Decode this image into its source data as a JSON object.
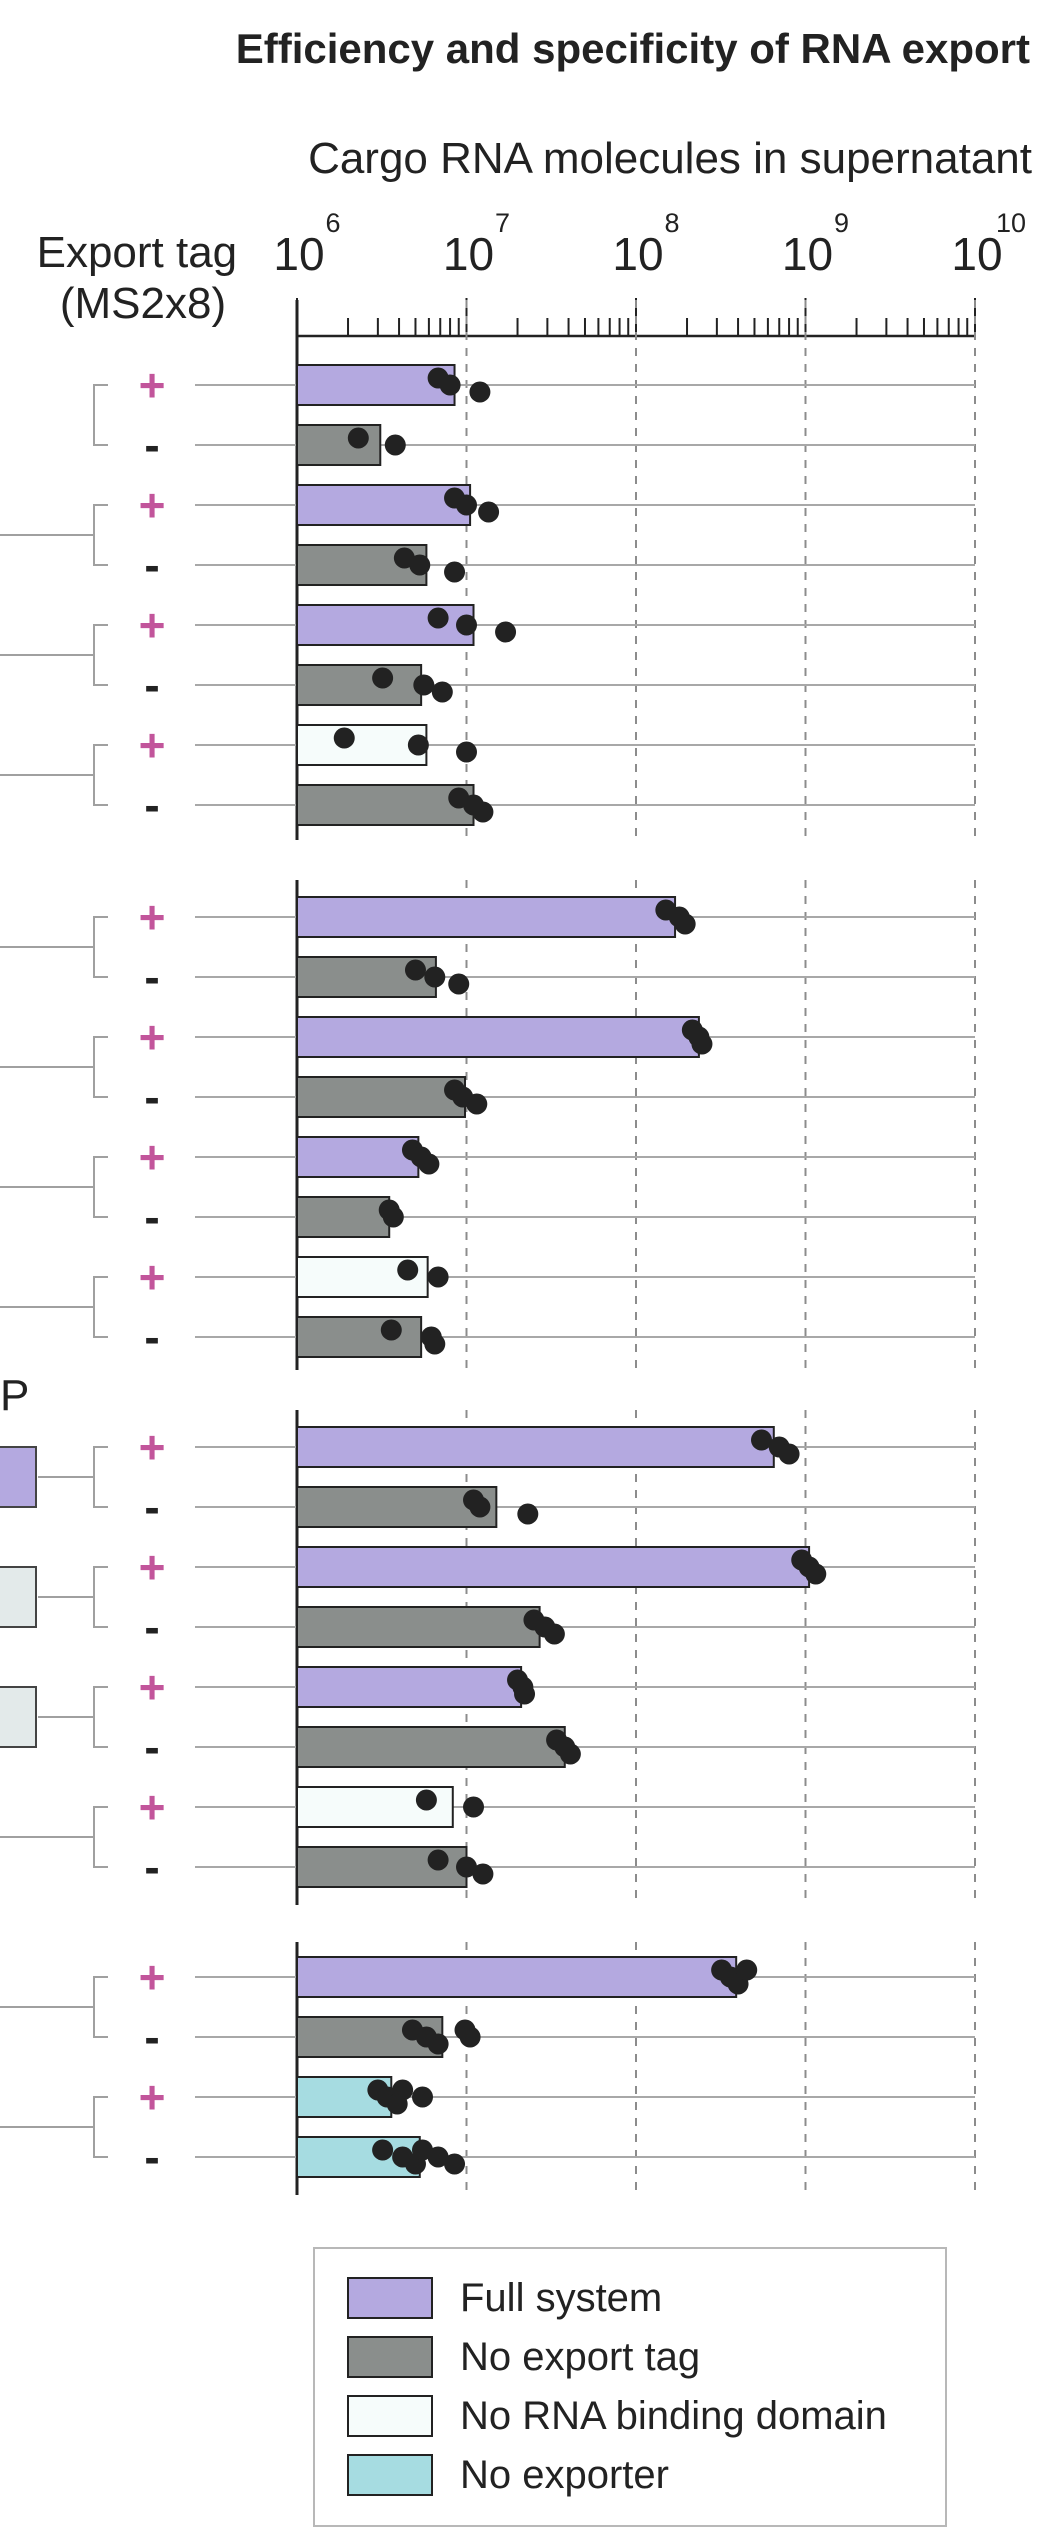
{
  "chart_data": {
    "type": "bar",
    "title": "Efficiency and specificity of RNA export",
    "xlabel": "Cargo RNA molecules in supernatant",
    "ylabel": "Export tag\n(MS2x8)",
    "x_scale": "log",
    "xlim": [
      1000000,
      10000000000
    ],
    "ticks": [
      {
        "base": "10",
        "exp": "6"
      },
      {
        "base": "10",
        "exp": "7"
      },
      {
        "base": "10",
        "exp": "8"
      },
      {
        "base": "10",
        "exp": "9"
      },
      {
        "base": "10",
        "exp": "10"
      }
    ],
    "grid": "dashed vertical lines at decades",
    "legend_position": "bottom",
    "colors": {
      "full": "#b4a9e0",
      "notag": "#8a8e8c",
      "nobind": "#f6fcfb",
      "noexp": "#a6dce1",
      "dot": "#222222"
    },
    "legend": [
      {
        "key": "full",
        "label": "Full system"
      },
      {
        "key": "notag",
        "label": "No export tag"
      },
      {
        "key": "nobind",
        "label": "No RNA binding domain"
      },
      {
        "key": "noexp",
        "label": "No exporter"
      }
    ],
    "panel_fragment_text": "P",
    "panels": [
      {
        "rows": [
          {
            "tag": "+",
            "condition": "full",
            "value": 8500000,
            "points": [
              6800000,
              8000000,
              12000000
            ]
          },
          {
            "tag": "-",
            "condition": "notag",
            "value": 3100000,
            "points": [
              2300000,
              3800000
            ]
          },
          {
            "tag": "+",
            "condition": "full",
            "value": 10500000,
            "points": [
              8500000,
              10000000,
              13500000
            ]
          },
          {
            "tag": "-",
            "condition": "notag",
            "value": 5800000,
            "points": [
              4300000,
              5300000,
              8500000
            ]
          },
          {
            "tag": "+",
            "condition": "full",
            "value": 11000000,
            "points": [
              6800000,
              10000000,
              17000000
            ]
          },
          {
            "tag": "-",
            "condition": "notag",
            "value": 5400000,
            "points": [
              3200000,
              5600000,
              7200000
            ]
          },
          {
            "tag": "+",
            "condition": "nobind",
            "value": 5800000,
            "points": [
              1900000,
              5200000,
              10000000
            ]
          },
          {
            "tag": "-",
            "condition": "notag",
            "value": 11000000,
            "points": [
              9000000,
              11000000,
              12500000
            ]
          }
        ]
      },
      {
        "rows": [
          {
            "tag": "+",
            "condition": "full",
            "value": 170000000,
            "points": [
              150000000,
              180000000,
              195000000
            ]
          },
          {
            "tag": "-",
            "condition": "notag",
            "value": 6600000,
            "points": [
              5000000,
              6500000,
              9000000
            ]
          },
          {
            "tag": "+",
            "condition": "full",
            "value": 235000000,
            "points": [
              215000000,
              235000000,
              245000000
            ]
          },
          {
            "tag": "-",
            "condition": "notag",
            "value": 9800000,
            "points": [
              8500000,
              9500000,
              11500000
            ]
          },
          {
            "tag": "+",
            "condition": "full",
            "value": 5200000,
            "points": [
              4800000,
              5400000,
              6000000
            ]
          },
          {
            "tag": "-",
            "condition": "notag",
            "value": 3500000,
            "points": [
              3500000,
              3700000
            ]
          },
          {
            "tag": "+",
            "condition": "nobind",
            "value": 5900000,
            "points": [
              4500000,
              6800000
            ]
          },
          {
            "tag": "-",
            "condition": "notag",
            "value": 5400000,
            "points": [
              3600000,
              6200000,
              6500000
            ]
          }
        ]
      },
      {
        "rows": [
          {
            "tag": "+",
            "condition": "full",
            "value": 650000000,
            "points": [
              550000000,
              700000000,
              800000000
            ]
          },
          {
            "tag": "-",
            "condition": "notag",
            "value": 15000000,
            "points": [
              11000000,
              12000000,
              23000000
            ]
          },
          {
            "tag": "+",
            "condition": "full",
            "value": 1050000000,
            "points": [
              950000000,
              1050000000,
              1150000000
            ]
          },
          {
            "tag": "-",
            "condition": "notag",
            "value": 27000000,
            "points": [
              25000000,
              29000000,
              33000000
            ]
          },
          {
            "tag": "+",
            "condition": "full",
            "value": 21000000,
            "points": [
              20000000,
              21500000,
              22000000
            ]
          },
          {
            "tag": "-",
            "condition": "notag",
            "value": 38000000,
            "points": [
              34000000,
              38000000,
              41000000
            ]
          },
          {
            "tag": "+",
            "condition": "nobind",
            "value": 8300000,
            "points": [
              5800000,
              11000000
            ]
          },
          {
            "tag": "-",
            "condition": "notag",
            "value": 10000000,
            "points": [
              6800000,
              10000000,
              12500000
            ]
          }
        ]
      },
      {
        "rows": [
          {
            "tag": "+",
            "condition": "full",
            "value": 390000000,
            "points": [
              320000000,
              360000000,
              400000000,
              450000000
            ]
          },
          {
            "tag": "-",
            "condition": "notag",
            "value": 7200000,
            "points": [
              4800000,
              5800000,
              6800000,
              9800000,
              10500000
            ]
          },
          {
            "tag": "+",
            "condition": "noexp",
            "value": 3600000,
            "points": [
              3000000,
              3400000,
              3900000,
              4200000,
              5500000
            ]
          },
          {
            "tag": "-",
            "condition": "noexp",
            "value": 5300000,
            "points": [
              3200000,
              4200000,
              5000000,
              5500000,
              6800000,
              8500000
            ]
          }
        ]
      }
    ]
  }
}
